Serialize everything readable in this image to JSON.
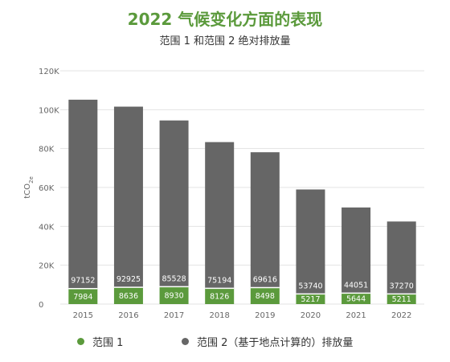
{
  "title": "2022 气候变化方面的表现",
  "subtitle": "范围 1 和范围 2 绝对排放量",
  "chart_data": {
    "type": "bar",
    "stacked": true,
    "categories": [
      "2015",
      "2016",
      "2017",
      "2018",
      "2019",
      "2020",
      "2021",
      "2022"
    ],
    "series": [
      {
        "name": "范围 1",
        "color": "#5b9a3c",
        "values": [
          7984,
          8636,
          8930,
          8126,
          8498,
          5217,
          5644,
          5211
        ]
      },
      {
        "name": "范围 2（基于地点计算的）排放量",
        "color": "#666666",
        "values": [
          97152,
          92925,
          85528,
          75194,
          69616,
          53740,
          44051,
          37270
        ]
      }
    ],
    "ylabel": "tCO2e",
    "ylim": [
      0,
      120000
    ],
    "yticks": [
      0,
      20000,
      40000,
      60000,
      80000,
      100000,
      120000
    ],
    "ytick_labels": [
      "0",
      "20K",
      "40K",
      "60K",
      "80K",
      "100K",
      "120K"
    ],
    "grid": true,
    "legend_position": "bottom"
  }
}
